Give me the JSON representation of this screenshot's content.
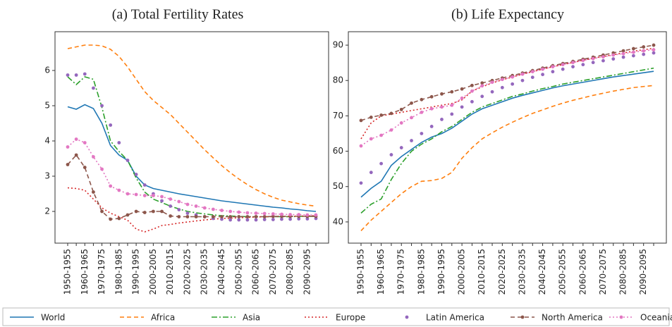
{
  "chart_data": [
    {
      "type": "line",
      "title": "(a) Total Fertility Rates",
      "categories": [
        "1950-1955",
        null,
        "1960-1965",
        null,
        "1970-1975",
        null,
        "1980-1985",
        null,
        "1990-1995",
        null,
        "2000-2005",
        null,
        "2010-2015",
        null,
        "2020-2025",
        null,
        "2030-2035",
        null,
        "2040-2045",
        null,
        "2050-2055",
        null,
        "2060-2065",
        null,
        "2070-2075",
        null,
        "2080-2085",
        null,
        "2090-2095",
        null
      ],
      "ylim": [
        1.1,
        7.1
      ],
      "yticks": [
        2,
        3,
        4,
        5,
        6
      ],
      "legend": "bottom",
      "series": [
        {
          "name": "World",
          "color": "#1f77b4",
          "linestyle": "-",
          "marker": null,
          "values": [
            4.97,
            4.9,
            5.03,
            4.92,
            4.5,
            3.87,
            3.6,
            3.45,
            3.0,
            2.75,
            2.65,
            2.6,
            2.55,
            2.5,
            2.46,
            2.42,
            2.38,
            2.34,
            2.3,
            2.27,
            2.24,
            2.21,
            2.18,
            2.15,
            2.12,
            2.1,
            2.07,
            2.05,
            2.02,
            2.0
          ]
        },
        {
          "name": "Africa",
          "color": "#ff7f0e",
          "linestyle": "--",
          "marker": null,
          "values": [
            6.62,
            6.67,
            6.72,
            6.72,
            6.7,
            6.6,
            6.4,
            6.1,
            5.75,
            5.4,
            5.15,
            4.95,
            4.75,
            4.5,
            4.25,
            4.0,
            3.75,
            3.52,
            3.3,
            3.1,
            2.92,
            2.76,
            2.62,
            2.5,
            2.4,
            2.32,
            2.27,
            2.22,
            2.18,
            2.15
          ]
        },
        {
          "name": "Asia",
          "color": "#2ca02c",
          "linestyle": "-.",
          "marker": null,
          "values": [
            5.82,
            5.6,
            5.82,
            5.75,
            4.95,
            4.0,
            3.7,
            3.45,
            2.95,
            2.55,
            2.35,
            2.25,
            2.15,
            2.07,
            2.0,
            1.96,
            1.93,
            1.9,
            1.88,
            1.87,
            1.86,
            1.85,
            1.85,
            1.85,
            1.85,
            1.85,
            1.85,
            1.86,
            1.86,
            1.86
          ]
        },
        {
          "name": "Europe",
          "color": "#d62728",
          "linestyle": ":",
          "marker": null,
          "values": [
            2.67,
            2.65,
            2.6,
            2.35,
            2.1,
            1.95,
            1.85,
            1.75,
            1.5,
            1.42,
            1.5,
            1.6,
            1.63,
            1.67,
            1.7,
            1.73,
            1.76,
            1.78,
            1.8,
            1.81,
            1.82,
            1.83,
            1.84,
            1.85,
            1.85,
            1.86,
            1.86,
            1.87,
            1.87,
            1.88
          ]
        },
        {
          "name": "Latin America",
          "color": "#9467bd",
          "linestyle": "none",
          "marker": "o",
          "values": [
            5.87,
            5.87,
            5.9,
            5.5,
            5.0,
            4.45,
            3.95,
            3.45,
            3.05,
            2.75,
            2.5,
            2.3,
            2.15,
            2.05,
            1.95,
            1.9,
            1.85,
            1.8,
            1.78,
            1.76,
            1.76,
            1.76,
            1.76,
            1.77,
            1.77,
            1.78,
            1.78,
            1.79,
            1.79,
            1.8
          ]
        },
        {
          "name": "North America",
          "color": "#8c564b",
          "linestyle": "--",
          "marker": "o",
          "values": [
            3.33,
            3.6,
            3.25,
            2.55,
            2.0,
            1.78,
            1.8,
            1.9,
            2.0,
            1.97,
            2.0,
            2.0,
            1.87,
            1.85,
            1.85,
            1.85,
            1.85,
            1.85,
            1.85,
            1.85,
            1.85,
            1.85,
            1.85,
            1.85,
            1.86,
            1.86,
            1.86,
            1.86,
            1.86,
            1.86
          ]
        },
        {
          "name": "Oceania",
          "color": "#e377c2",
          "linestyle": ":",
          "marker": "o",
          "values": [
            3.83,
            4.05,
            3.95,
            3.55,
            3.2,
            2.72,
            2.6,
            2.5,
            2.48,
            2.45,
            2.45,
            2.42,
            2.35,
            2.28,
            2.2,
            2.15,
            2.1,
            2.06,
            2.03,
            2.0,
            1.98,
            1.96,
            1.95,
            1.94,
            1.93,
            1.92,
            1.91,
            1.91,
            1.9,
            1.9
          ]
        }
      ]
    },
    {
      "type": "line",
      "title": "(b) Life Expectancy",
      "categories": [
        "1950-1955",
        null,
        "1960-1965",
        null,
        "1970-1975",
        null,
        "1980-1985",
        null,
        "1990-1995",
        null,
        "2000-2005",
        null,
        "2010-2015",
        null,
        "2020-2025",
        null,
        "2030-2035",
        null,
        "2040-2045",
        null,
        "2050-2055",
        null,
        "2060-2065",
        null,
        "2070-2075",
        null,
        "2080-2085",
        null,
        "2090-2095",
        null
      ],
      "ylim": [
        34,
        93.8
      ],
      "yticks": [
        40,
        50,
        60,
        70,
        80,
        90
      ],
      "series": [
        {
          "color": "#1f77b4",
          "linestyle": "-",
          "marker": null,
          "values": [
            47,
            49.5,
            51.5,
            56,
            58.5,
            60.5,
            62.5,
            64,
            65,
            66.5,
            68.5,
            70.5,
            72,
            73,
            74,
            75,
            75.8,
            76.5,
            77.2,
            77.9,
            78.5,
            79,
            79.5,
            80,
            80.5,
            81,
            81.4,
            81.8,
            82.2,
            82.6
          ]
        },
        {
          "color": "#ff7f0e",
          "linestyle": "--",
          "marker": null,
          "values": [
            37.5,
            40.5,
            43,
            45.5,
            48,
            50,
            51.5,
            51.7,
            52.3,
            54,
            58,
            61,
            63.5,
            65.2,
            66.8,
            68.2,
            69.5,
            70.7,
            71.7,
            72.7,
            73.6,
            74.4,
            75.1,
            75.8,
            76.4,
            77,
            77.5,
            78,
            78.3,
            78.6
          ]
        },
        {
          "color": "#2ca02c",
          "linestyle": "-.",
          "marker": null,
          "values": [
            42.5,
            45,
            46.5,
            52,
            56.5,
            60,
            62,
            63.5,
            65.5,
            67,
            69,
            71,
            72.5,
            73.5,
            74.5,
            75.5,
            76.2,
            77,
            77.7,
            78.3,
            79,
            79.5,
            80,
            80.5,
            81,
            81.5,
            82,
            82.5,
            83,
            83.5
          ]
        },
        {
          "color": "#d62728",
          "linestyle": ":",
          "marker": null,
          "values": [
            63.5,
            68,
            70,
            70.5,
            71,
            71.5,
            72,
            72.5,
            73,
            73.5,
            74.5,
            77,
            78.2,
            79.3,
            80.2,
            81,
            81.8,
            82.5,
            83.2,
            83.9,
            84.5,
            85.1,
            85.7,
            86.3,
            86.8,
            87.3,
            87.8,
            88.3,
            88.7,
            89.1
          ]
        },
        {
          "color": "#9467bd",
          "linestyle": "none",
          "marker": "o",
          "values": [
            51,
            54,
            56.5,
            59,
            61,
            63,
            65,
            67,
            69,
            70.5,
            72.5,
            74,
            75.5,
            76.8,
            78,
            79,
            80,
            80.9,
            81.7,
            82.5,
            83.2,
            83.9,
            84.5,
            85.1,
            85.6,
            86.1,
            86.6,
            87,
            87.4,
            87.8
          ]
        },
        {
          "color": "#8c564b",
          "linestyle": "--",
          "marker": "o",
          "values": [
            68.7,
            69.6,
            70.2,
            70.7,
            71.8,
            73.6,
            74.6,
            75.4,
            76.2,
            76.8,
            77.6,
            78.6,
            79.3,
            80,
            80.7,
            81.4,
            82.1,
            82.8,
            83.5,
            84.2,
            84.8,
            85.4,
            86,
            86.6,
            87.2,
            87.8,
            88.4,
            89,
            89.5,
            90
          ]
        },
        {
          "color": "#e377c2",
          "linestyle": ":",
          "marker": "o",
          "values": [
            61.5,
            63.5,
            64.5,
            66,
            68,
            69.5,
            71,
            72,
            72.5,
            73,
            75,
            77,
            78.5,
            79.5,
            80.3,
            81,
            81.8,
            82.5,
            83.2,
            83.9,
            84.5,
            85.1,
            85.7,
            86.2,
            86.7,
            87.2,
            87.6,
            88,
            88.4,
            88.7
          ]
        }
      ]
    }
  ]
}
